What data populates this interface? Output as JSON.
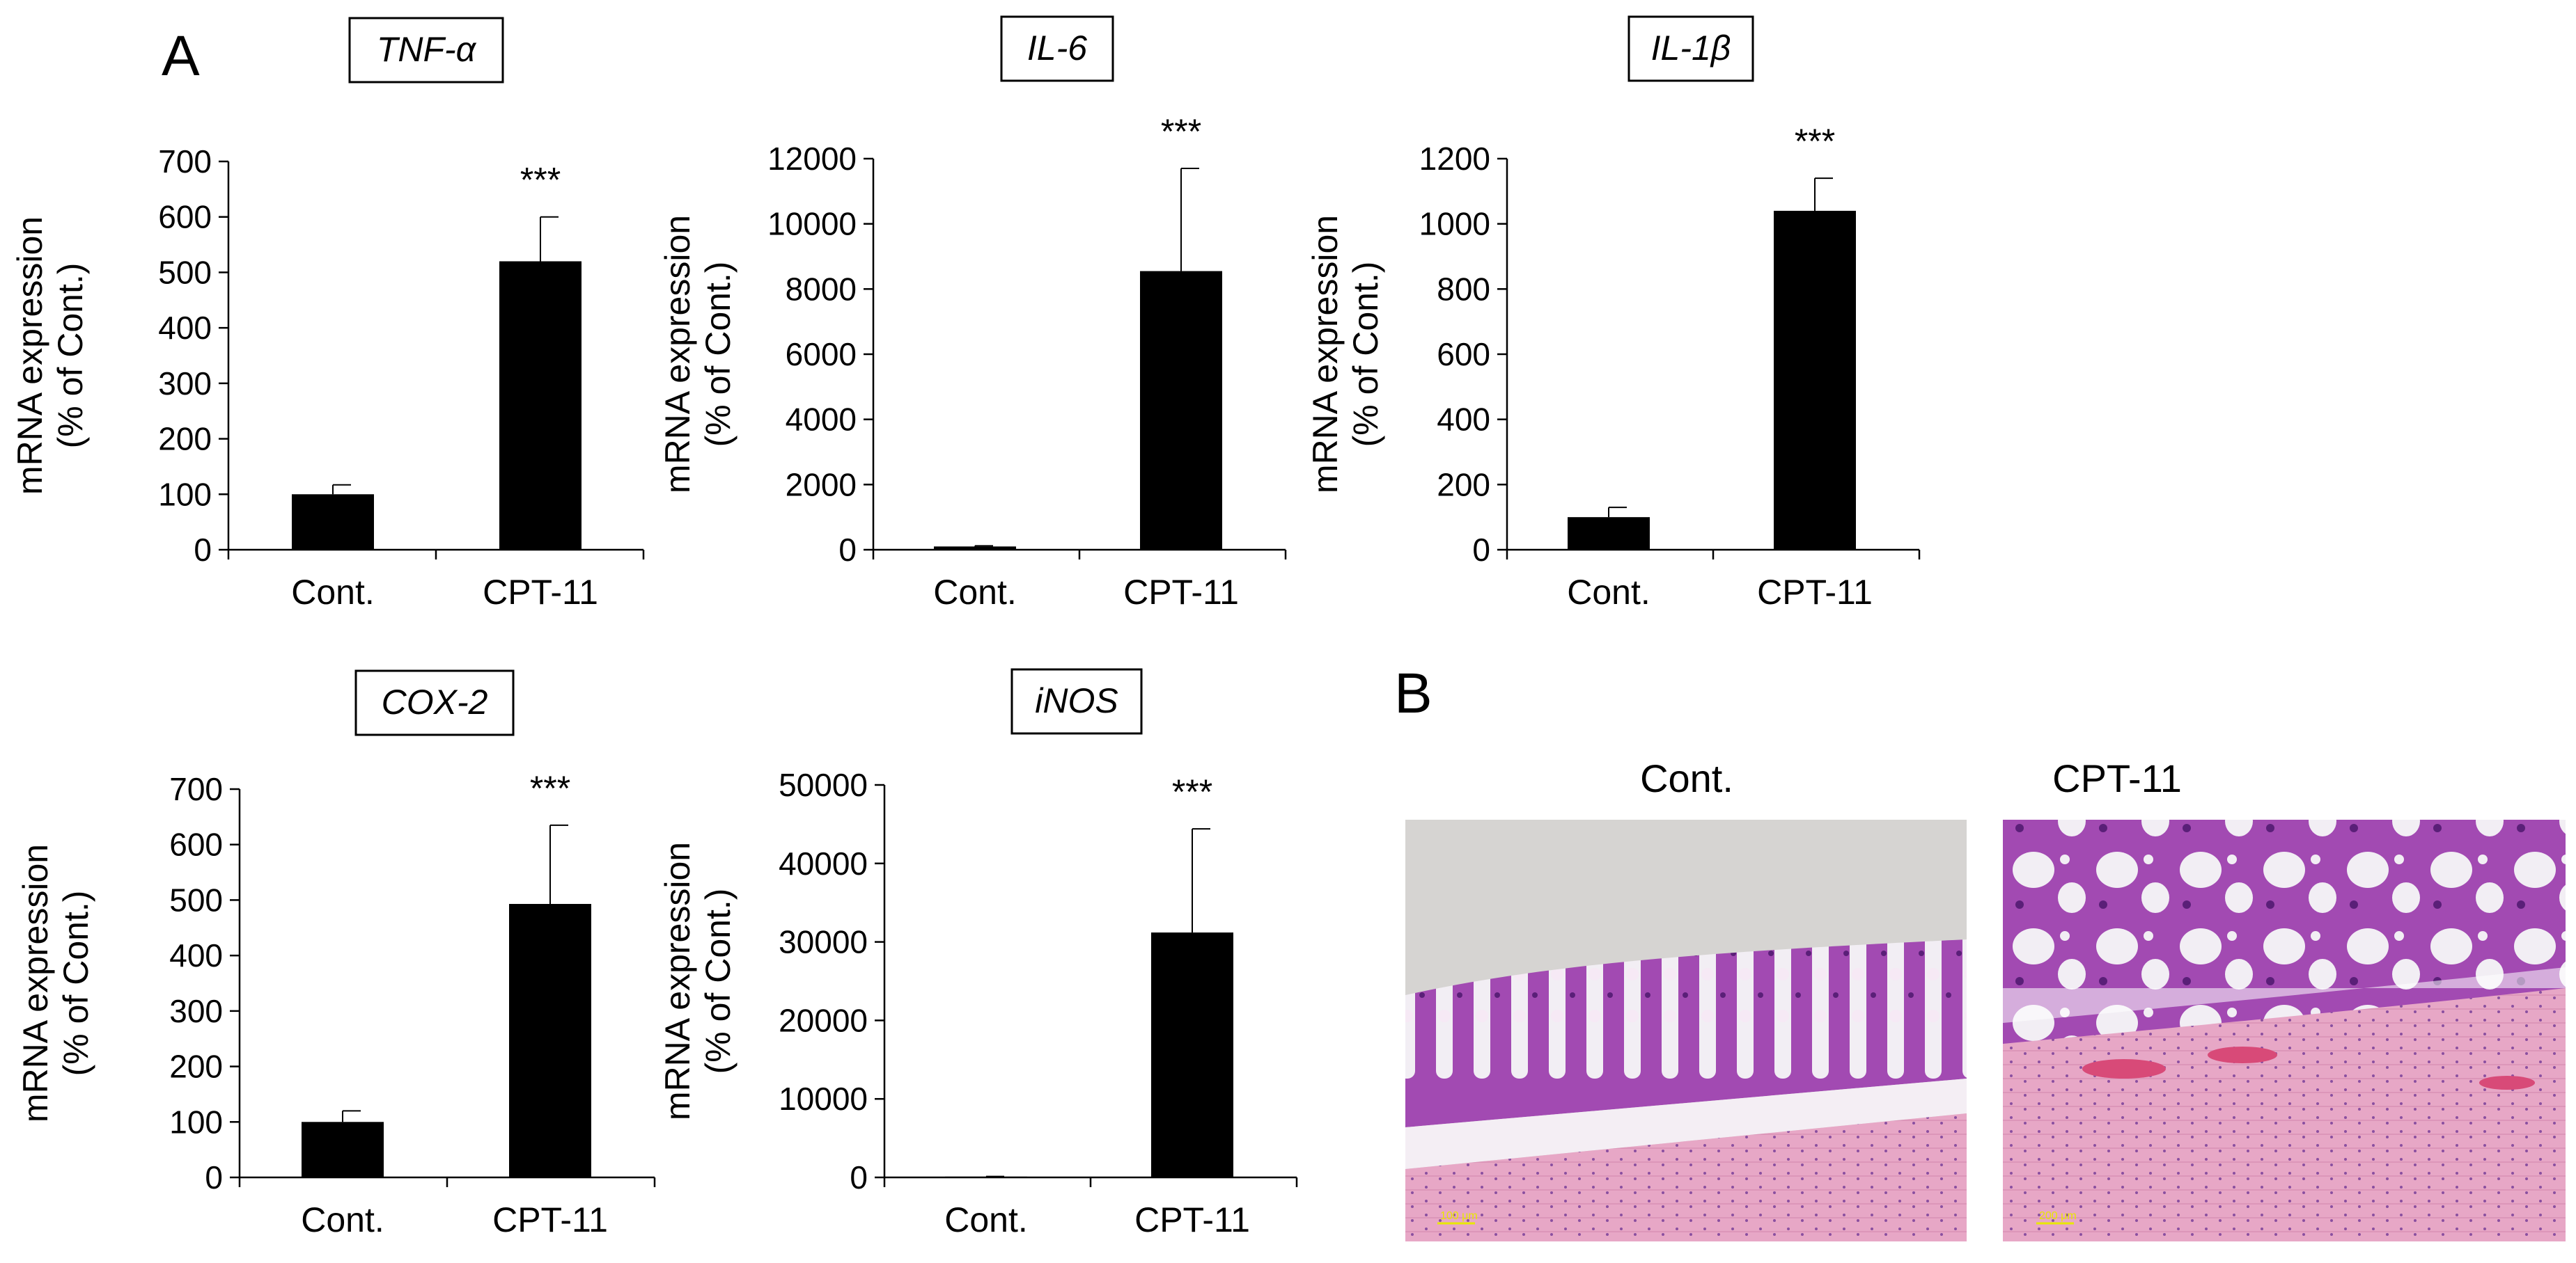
{
  "figure": {
    "panel_a_label": "A",
    "panel_b_label": "B",
    "significance_marker": "***"
  },
  "chart_data": [
    {
      "type": "bar",
      "title": "TNF-α",
      "ylabel_line1": "mRNA expression",
      "ylabel_line2": "(% of Cont.)",
      "categories": [
        "Cont.",
        "CPT-11"
      ],
      "values": [
        100,
        520
      ],
      "error": [
        17,
        80
      ],
      "ylim": [
        0,
        700
      ],
      "yticks": [
        0,
        100,
        200,
        300,
        400,
        500,
        600,
        700
      ],
      "significance": "***",
      "colors": {
        "bar": "#000000"
      }
    },
    {
      "type": "bar",
      "title": "IL-6",
      "ylabel_line1": "mRNA expression",
      "ylabel_line2": "(% of Cont.)",
      "categories": [
        "Cont.",
        "CPT-11"
      ],
      "values": [
        100,
        8550
      ],
      "error": [
        20,
        3150
      ],
      "ylim": [
        0,
        12000
      ],
      "yticks": [
        0,
        2000,
        4000,
        6000,
        8000,
        10000,
        12000
      ],
      "significance": "***",
      "colors": {
        "bar": "#000000"
      }
    },
    {
      "type": "bar",
      "title": "IL-1β",
      "ylabel_line1": "mRNA expression",
      "ylabel_line2": "(% of Cont.)",
      "categories": [
        "Cont.",
        "CPT-11"
      ],
      "values": [
        100,
        1040
      ],
      "error": [
        30,
        100
      ],
      "ylim": [
        0,
        1200
      ],
      "yticks": [
        0,
        200,
        400,
        600,
        800,
        1000,
        1200
      ],
      "significance": "***",
      "colors": {
        "bar": "#000000"
      }
    },
    {
      "type": "bar",
      "title": "COX-2",
      "ylabel_line1": "mRNA expression",
      "ylabel_line2": "(% of Cont.)",
      "categories": [
        "Cont.",
        "CPT-11"
      ],
      "values": [
        100,
        493
      ],
      "error": [
        20,
        142
      ],
      "ylim": [
        0,
        700
      ],
      "yticks": [
        0,
        100,
        200,
        300,
        400,
        500,
        600,
        700
      ],
      "significance": "***",
      "colors": {
        "bar": "#000000"
      }
    },
    {
      "type": "bar",
      "title": "iNOS",
      "ylabel_line1": "mRNA expression",
      "ylabel_line2": "(% of Cont.)",
      "categories": [
        "Cont.",
        "CPT-11"
      ],
      "values": [
        100,
        31200
      ],
      "error": [
        20,
        13200
      ],
      "ylim": [
        0,
        50000
      ],
      "yticks": [
        0,
        10000,
        20000,
        30000,
        40000,
        50000
      ],
      "significance": "***",
      "colors": {
        "bar": "#000000"
      }
    }
  ],
  "histology": {
    "images": [
      {
        "title": "Cont.",
        "scale_label": "100 μm"
      },
      {
        "title": "CPT-11",
        "scale_label": "200 μm"
      }
    ],
    "colors": {
      "background": "#d6d4d2",
      "mucosa": "#a24ab2",
      "goblet": "#f2eef4",
      "muscle": "#e7a7c6"
    }
  }
}
